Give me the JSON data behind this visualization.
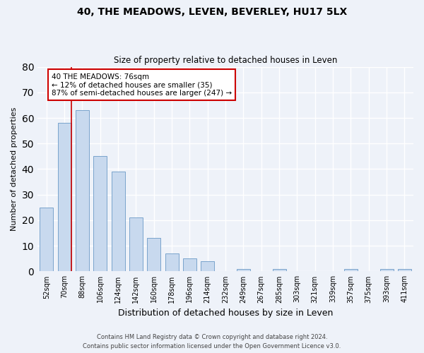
{
  "title": "40, THE MEADOWS, LEVEN, BEVERLEY, HU17 5LX",
  "subtitle": "Size of property relative to detached houses in Leven",
  "xlabel": "Distribution of detached houses by size in Leven",
  "ylabel": "Number of detached properties",
  "bar_labels": [
    "52sqm",
    "70sqm",
    "88sqm",
    "106sqm",
    "124sqm",
    "142sqm",
    "160sqm",
    "178sqm",
    "196sqm",
    "214sqm",
    "232sqm",
    "249sqm",
    "267sqm",
    "285sqm",
    "303sqm",
    "321sqm",
    "339sqm",
    "357sqm",
    "375sqm",
    "393sqm",
    "411sqm"
  ],
  "bar_values": [
    25,
    58,
    63,
    45,
    39,
    21,
    13,
    7,
    5,
    4,
    0,
    1,
    0,
    1,
    0,
    0,
    0,
    1,
    0,
    1,
    1
  ],
  "bar_color": "#c8d9ee",
  "bar_edge_color": "#7aa3cc",
  "ylim": [
    0,
    80
  ],
  "yticks": [
    0,
    10,
    20,
    30,
    40,
    50,
    60,
    70,
    80
  ],
  "property_line_color": "#cc0000",
  "annotation_line1": "40 THE MEADOWS: 76sqm",
  "annotation_line2": "← 12% of detached houses are smaller (35)",
  "annotation_line3": "87% of semi-detached houses are larger (247) →",
  "annotation_box_color": "#ffffff",
  "annotation_box_edge": "#cc0000",
  "footer_line1": "Contains HM Land Registry data © Crown copyright and database right 2024.",
  "footer_line2": "Contains public sector information licensed under the Open Government Licence v3.0.",
  "background_color": "#eef2f9",
  "grid_color": "#ffffff"
}
